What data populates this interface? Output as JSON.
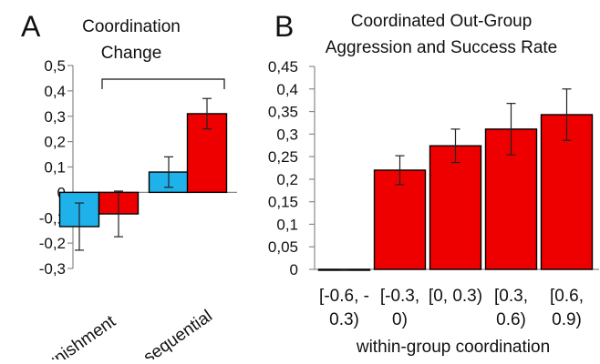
{
  "chart_data": [
    {
      "panel": "A",
      "type": "bar",
      "title_lines": [
        "Coordination",
        "Change"
      ],
      "categories": [
        "punishment",
        "sequential"
      ],
      "series": [
        {
          "values": [
            -0.135,
            0.08
          ],
          "errors": [
            0.093,
            0.06
          ],
          "color": "#1fb1ea"
        },
        {
          "values": [
            -0.085,
            0.31
          ],
          "errors": [
            0.09,
            0.06
          ],
          "color": "#ee0000"
        }
      ],
      "ylim": [
        -0.3,
        0.5
      ],
      "yticks": [
        "-0,3",
        "-0,2",
        "-0,1",
        "0",
        "0,1",
        "0,2",
        "0,3",
        "0,4",
        "0,5"
      ],
      "grid": false
    },
    {
      "panel": "B",
      "type": "bar",
      "title_lines": [
        "Coordinated Out-Group",
        "Aggression  and Success Rate"
      ],
      "xlabel": "within-group coordination",
      "categories": [
        [
          "[-0.6, -",
          "0.3)"
        ],
        [
          "[-0.3,",
          "0)"
        ],
        [
          "[0, 0.3)",
          ""
        ],
        [
          "[0.3,",
          "0.6)"
        ],
        [
          "[0.6,",
          "0.9)"
        ]
      ],
      "series": [
        {
          "values": [
            0,
            0.22,
            0.274,
            0.311,
            0.343
          ],
          "errors": [
            0,
            0.032,
            0.037,
            0.057,
            0.057
          ],
          "color": "#ee0000"
        }
      ],
      "ylim": [
        0,
        0.45
      ],
      "yticks": [
        "0",
        "0,05",
        "0,1",
        "0,15",
        "0,2",
        "0,25",
        "0,3",
        "0,35",
        "0,4",
        "0,45"
      ],
      "grid": false
    }
  ]
}
